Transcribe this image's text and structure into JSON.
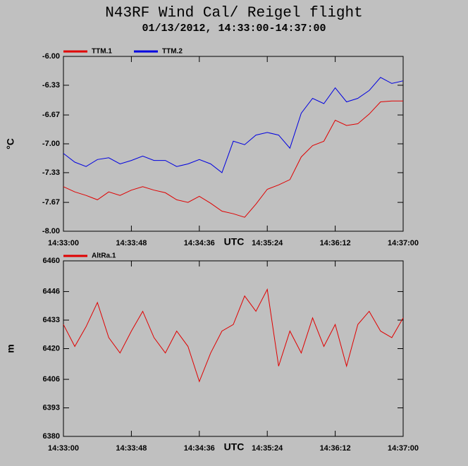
{
  "chart_data": [
    {
      "type": "line",
      "title": "N43RF Wind Cal/ Reigel flight",
      "subtitle": "01/13/2012, 14:33:00-14:37:00",
      "ylabel": "°C",
      "xlabel": "UTC",
      "x": [
        "14:33:00",
        "14:33:08",
        "14:33:16",
        "14:33:24",
        "14:33:32",
        "14:33:40",
        "14:33:48",
        "14:33:56",
        "14:34:04",
        "14:34:12",
        "14:34:20",
        "14:34:28",
        "14:34:36",
        "14:34:44",
        "14:34:52",
        "14:35:00",
        "14:35:08",
        "14:35:16",
        "14:35:24",
        "14:35:32",
        "14:35:40",
        "14:35:48",
        "14:35:56",
        "14:36:04",
        "14:36:12",
        "14:36:20",
        "14:36:28",
        "14:36:36",
        "14:36:44",
        "14:36:52",
        "14:37:00"
      ],
      "series": [
        {
          "name": "TTM.1",
          "color": "#e00000",
          "values": [
            -7.49,
            -7.55,
            -7.59,
            -7.64,
            -7.55,
            -7.59,
            -7.53,
            -7.49,
            -7.53,
            -7.56,
            -7.64,
            -7.67,
            -7.6,
            -7.68,
            -7.77,
            -7.8,
            -7.84,
            -7.69,
            -7.52,
            -7.47,
            -7.41,
            -7.15,
            -7.02,
            -6.97,
            -6.73,
            -6.79,
            -6.77,
            -6.66,
            -6.52,
            -6.51,
            -6.51
          ]
        },
        {
          "name": "TTM.2",
          "color": "#0000e0",
          "values": [
            -7.11,
            -7.21,
            -7.26,
            -7.18,
            -7.16,
            -7.23,
            -7.19,
            -7.14,
            -7.19,
            -7.19,
            -7.26,
            -7.23,
            -7.18,
            -7.23,
            -7.33,
            -6.97,
            -7.01,
            -6.9,
            -6.87,
            -6.9,
            -7.05,
            -6.65,
            -6.48,
            -6.54,
            -6.36,
            -6.52,
            -6.48,
            -6.39,
            -6.24,
            -6.31,
            -6.28
          ]
        }
      ],
      "xlim": [
        "14:33:00",
        "14:37:00"
      ],
      "xticks": [
        "14:33:00",
        "14:33:48",
        "14:34:36",
        "14:35:24",
        "14:36:12",
        "14:37:00"
      ],
      "ylim": [
        -8,
        -6
      ],
      "yticks": [
        {
          "value": -6,
          "label": "-6.00"
        },
        -6.33,
        -6.67,
        {
          "value": -7,
          "label": "-7.00"
        },
        -7.33,
        -7.67,
        {
          "value": -8,
          "label": "-8.00"
        }
      ]
    },
    {
      "type": "line",
      "ylabel": "m",
      "xlabel": "UTC",
      "x": [
        "14:33:00",
        "14:33:08",
        "14:33:16",
        "14:33:24",
        "14:33:32",
        "14:33:40",
        "14:33:48",
        "14:33:56",
        "14:34:04",
        "14:34:12",
        "14:34:20",
        "14:34:28",
        "14:34:36",
        "14:34:44",
        "14:34:52",
        "14:35:00",
        "14:35:08",
        "14:35:16",
        "14:35:24",
        "14:35:32",
        "14:35:40",
        "14:35:48",
        "14:35:56",
        "14:36:04",
        "14:36:12",
        "14:36:20",
        "14:36:28",
        "14:36:36",
        "14:36:44",
        "14:36:52",
        "14:37:00"
      ],
      "series": [
        {
          "name": "AltRa.1",
          "color": "#e00000",
          "values": [
            6431,
            6421,
            6430,
            6441,
            6425,
            6418,
            6428,
            6437,
            6425,
            6418,
            6428,
            6421,
            6405,
            6418,
            6428,
            6431,
            6444,
            6437,
            6447,
            6412,
            6428,
            6418,
            6434,
            6421,
            6431,
            6412,
            6431,
            6437,
            6428,
            6425,
            6434
          ]
        }
      ],
      "xlim": [
        "14:33:00",
        "14:37:00"
      ],
      "xticks": [
        "14:33:00",
        "14:33:48",
        "14:34:36",
        "14:35:24",
        "14:36:12",
        "14:37:00"
      ],
      "ylim": [
        6380,
        6460
      ],
      "yticks": [
        6380,
        6393,
        6406,
        6420,
        6433,
        6446,
        6460
      ]
    }
  ]
}
